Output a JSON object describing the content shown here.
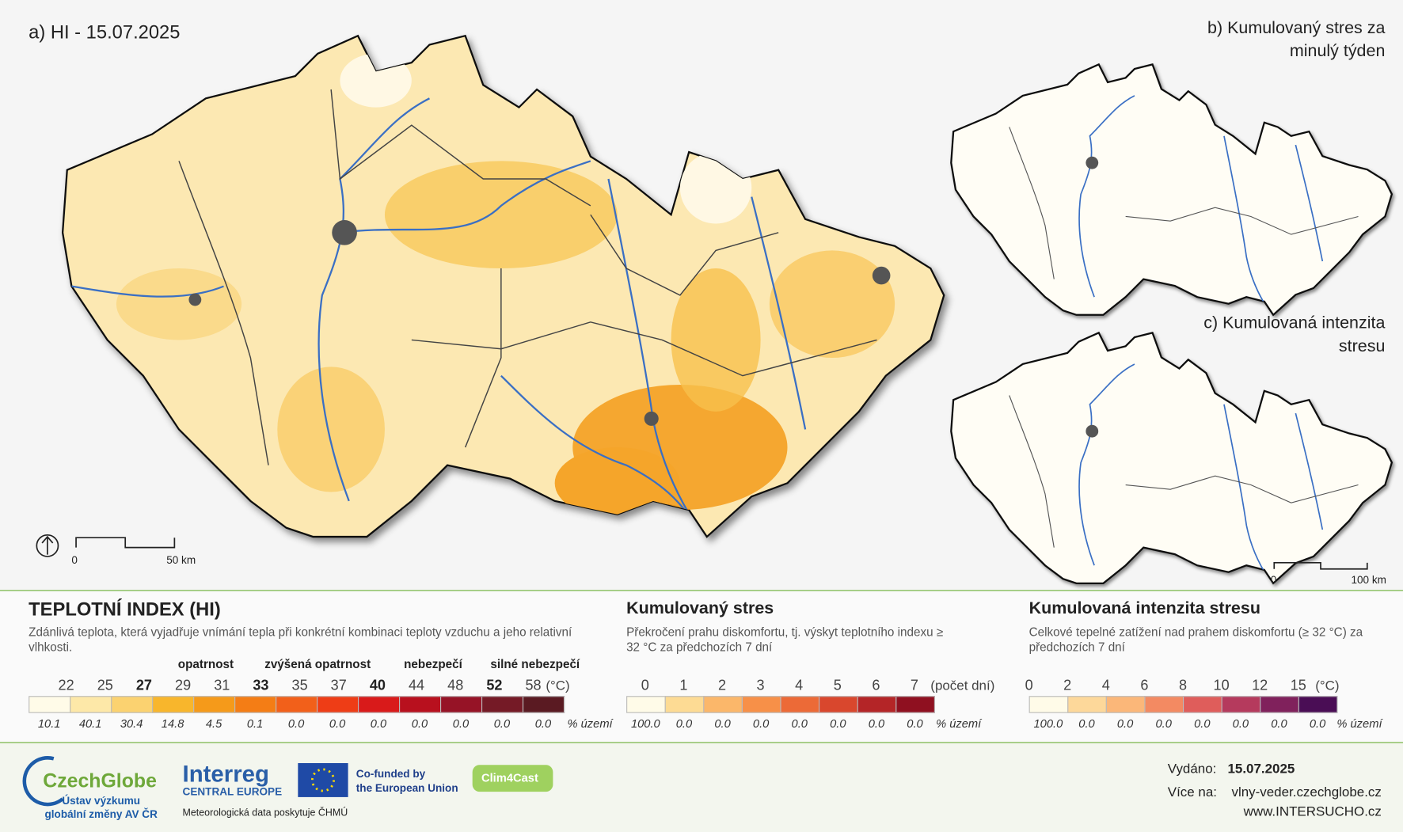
{
  "map_a": {
    "title": "a) HI - 15.07.2025",
    "scale_labels": [
      "0",
      "50 km"
    ]
  },
  "map_b": {
    "title_lines": [
      "b) Kumulovaný stres za",
      "minulý týden"
    ]
  },
  "map_c": {
    "title_lines": [
      "c) Kumulovaná intenzita",
      "stresu"
    ],
    "scale_labels": [
      "0",
      "100 km"
    ]
  },
  "legend_hi": {
    "title": "TEPLOTNÍ INDEX (HI)",
    "description": "Zdánlivá teplota, která vyjadřuje vnímání tepla při konkrétní kombinaci teploty vzduchu a jeho relativní vlhkosti.",
    "levels": [
      "opatrnost",
      "zvýšená opatrnost",
      "nebezpečí",
      "silné nebezpečí"
    ],
    "ticks": [
      {
        "text": "22"
      },
      {
        "text": "25"
      },
      {
        "text": "27",
        "bold": true
      },
      {
        "text": "29"
      },
      {
        "text": "31"
      },
      {
        "text": "33",
        "bold": true
      },
      {
        "text": "35"
      },
      {
        "text": "37"
      },
      {
        "text": "40",
        "bold": true
      },
      {
        "text": "44"
      },
      {
        "text": "48"
      },
      {
        "text": "52",
        "bold": true
      },
      {
        "text": "58"
      }
    ],
    "unit": "(°C)",
    "colors": [
      "#fffbe8",
      "#fde8a8",
      "#fbd270",
      "#f8b62c",
      "#f59a1a",
      "#f47d15",
      "#f2601a",
      "#ee3d16",
      "#d91a1a",
      "#b8101e",
      "#961326",
      "#751a26",
      "#5a1a22"
    ],
    "shares": [
      "10.1",
      "40.1",
      "30.4",
      "14.8",
      "4.5",
      "0.1",
      "0.0",
      "0.0",
      "0.0",
      "0.0",
      "0.0",
      "0.0",
      "0.0"
    ],
    "share_unit": "% území"
  },
  "legend_stress": {
    "title": "Kumulovaný stres",
    "description": "Překročení prahu diskomfortu, tj. výskyt teplotního indexu ≥ 32 °C za předchozích 7 dní",
    "ticks": [
      "0",
      "1",
      "2",
      "3",
      "4",
      "5",
      "6",
      "7"
    ],
    "unit": "(počet dní)",
    "colors": [
      "#fffbe8",
      "#fddb94",
      "#fbb76a",
      "#f79048",
      "#ec6a37",
      "#d9472d",
      "#b42527",
      "#8f1020"
    ],
    "shares": [
      "100.0",
      "0.0",
      "0.0",
      "0.0",
      "0.0",
      "0.0",
      "0.0",
      "0.0"
    ],
    "share_unit": "% území"
  },
  "legend_intensity": {
    "title": "Kumulovaná intenzita stresu",
    "description": "Celkové tepelné zatížení nad prahem diskomfortu (≥ 32 °C) za předchozích 7 dní",
    "ticks": [
      "0",
      "2",
      "4",
      "6",
      "8",
      "10",
      "12",
      "15"
    ],
    "unit": "(°C)",
    "colors": [
      "#fffbe8",
      "#fdd89a",
      "#fbb779",
      "#f38a62",
      "#df5d5b",
      "#b53a5d",
      "#80215c",
      "#4a0d55"
    ],
    "shares": [
      "100.0",
      "0.0",
      "0.0",
      "0.0",
      "0.0",
      "0.0",
      "0.0",
      "0.0"
    ],
    "share_unit": "% území"
  },
  "footer": {
    "czechglobe": "CzechGlobe",
    "czechglobe_sub": [
      "Ústav výzkumu",
      "globální změny AV ČR"
    ],
    "interreg": "Interreg",
    "interreg_sub": "CENTRAL EUROPE",
    "eu": [
      "Co-funded by",
      "the European Union"
    ],
    "clim4cast": "Clim4Cast",
    "data_note": "Meteorologická data poskytuje ČHMÚ",
    "issued_label": "Vydáno:",
    "issued": "15.07.2025",
    "more_label": "Více na:",
    "web1": "vlny-veder.czechglobe.cz",
    "web2": "www.INTERSUCHO.cz"
  }
}
